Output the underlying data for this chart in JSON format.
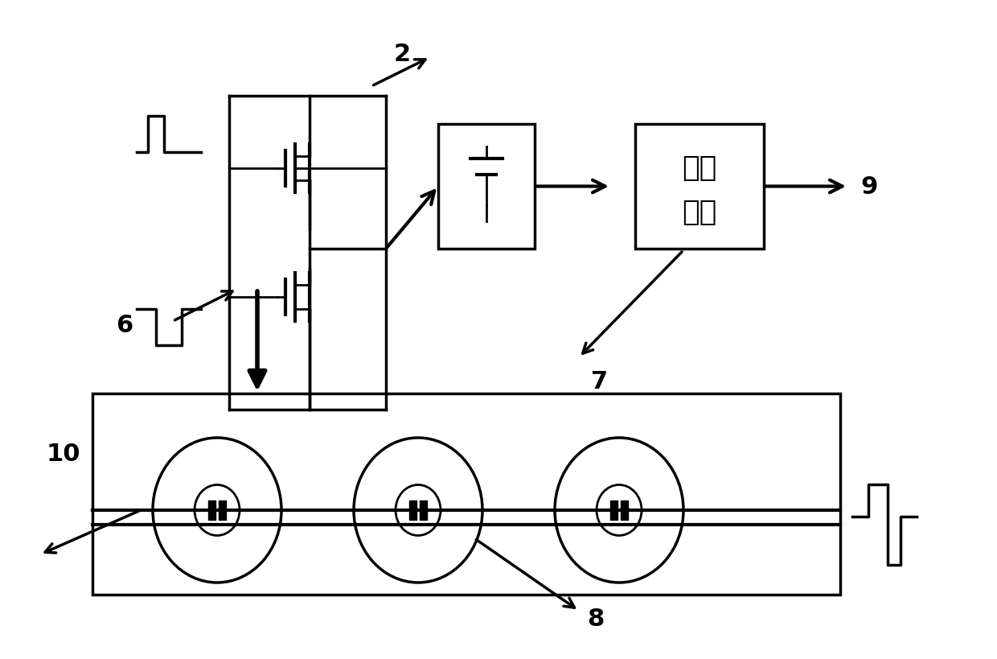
{
  "bg_color": "#ffffff",
  "line_color": "#000000",
  "label_2": "2",
  "label_6": "6",
  "label_7": "7",
  "label_8": "8",
  "label_9": "9",
  "label_10": "10",
  "dc_text1": "直流",
  "dc_text2": "电源",
  "figsize": [
    12.4,
    8.2
  ],
  "dpi": 100
}
